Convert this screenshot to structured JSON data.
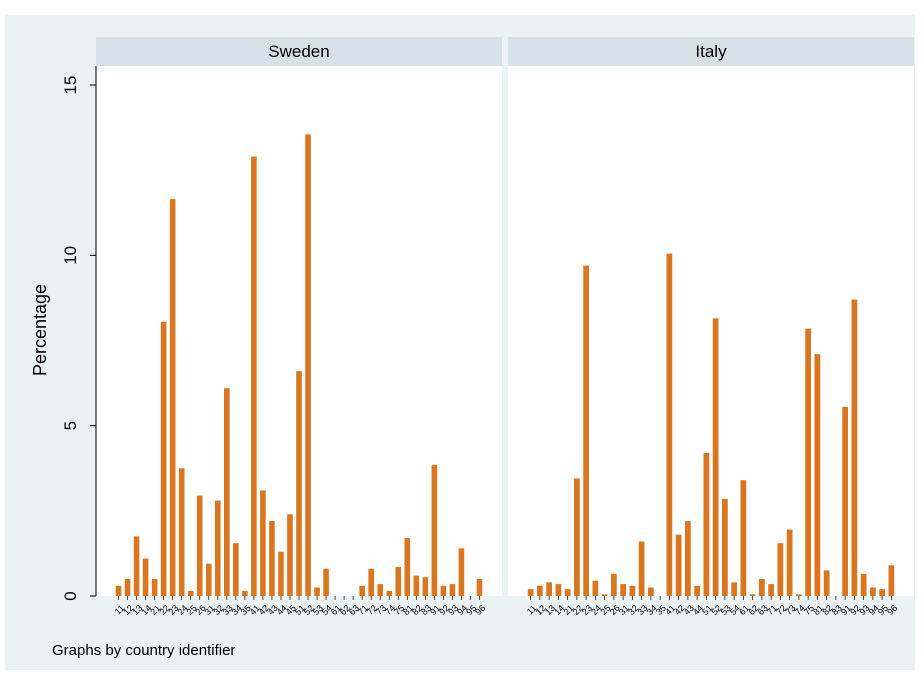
{
  "chart_data": {
    "type": "bar",
    "ylabel": "Percentage",
    "note": "Graphs by country identifier",
    "ylim": [
      0,
      15
    ],
    "yticks": [
      0,
      5,
      10,
      15
    ],
    "grid": false,
    "bar_color": "#d9761f",
    "panels": [
      {
        "title": "Sweden",
        "categories": [
          "11",
          "12",
          "13",
          "14",
          "21",
          "22",
          "23",
          "24",
          "25",
          "26",
          "31",
          "32",
          "33",
          "34",
          "35",
          "41",
          "42",
          "43",
          "44",
          "45",
          "51",
          "52",
          "53",
          "54",
          "61",
          "62",
          "63",
          "71",
          "72",
          "73",
          "74",
          "75",
          "81",
          "82",
          "83",
          "91",
          "92",
          "93",
          "94",
          "95",
          "96"
        ],
        "values": [
          0.3,
          0.5,
          1.75,
          1.1,
          0.5,
          8.05,
          11.65,
          3.75,
          0.15,
          2.95,
          0.95,
          2.8,
          6.1,
          1.55,
          0.15,
          12.9,
          3.1,
          2.2,
          1.3,
          2.4,
          6.6,
          13.55,
          0.25,
          0.8,
          0.0,
          0.0,
          0.0,
          0.3,
          0.8,
          0.35,
          0.15,
          0.85,
          1.7,
          0.6,
          0.55,
          3.85,
          0.3,
          0.35,
          1.4,
          0.0,
          0.5
        ]
      },
      {
        "title": "Italy",
        "categories": [
          "11",
          "12",
          "13",
          "14",
          "21",
          "22",
          "23",
          "24",
          "25",
          "26",
          "31",
          "32",
          "33",
          "34",
          "35",
          "41",
          "42",
          "43",
          "44",
          "51",
          "52",
          "53",
          "54",
          "61",
          "62",
          "63",
          "71",
          "72",
          "73",
          "74",
          "75",
          "81",
          "82",
          "83",
          "91",
          "92",
          "93",
          "94",
          "95",
          "96"
        ],
        "values": [
          0.2,
          0.3,
          0.4,
          0.35,
          0.2,
          3.45,
          9.7,
          0.45,
          0.05,
          0.65,
          0.35,
          0.3,
          1.6,
          0.25,
          0.0,
          10.05,
          1.8,
          2.2,
          0.3,
          4.2,
          8.15,
          2.85,
          0.4,
          3.4,
          0.05,
          0.5,
          0.35,
          1.55,
          1.95,
          0.05,
          7.85,
          7.1,
          0.75,
          0.0,
          5.55,
          8.7,
          0.65,
          0.25,
          0.2,
          0.9
        ]
      }
    ]
  },
  "colors": {
    "outer_background": "#eaf2f3",
    "plot_background": "#ffffff",
    "panel_header": "#d6e1e7",
    "bar": "#d9761f",
    "text": "#000000"
  }
}
